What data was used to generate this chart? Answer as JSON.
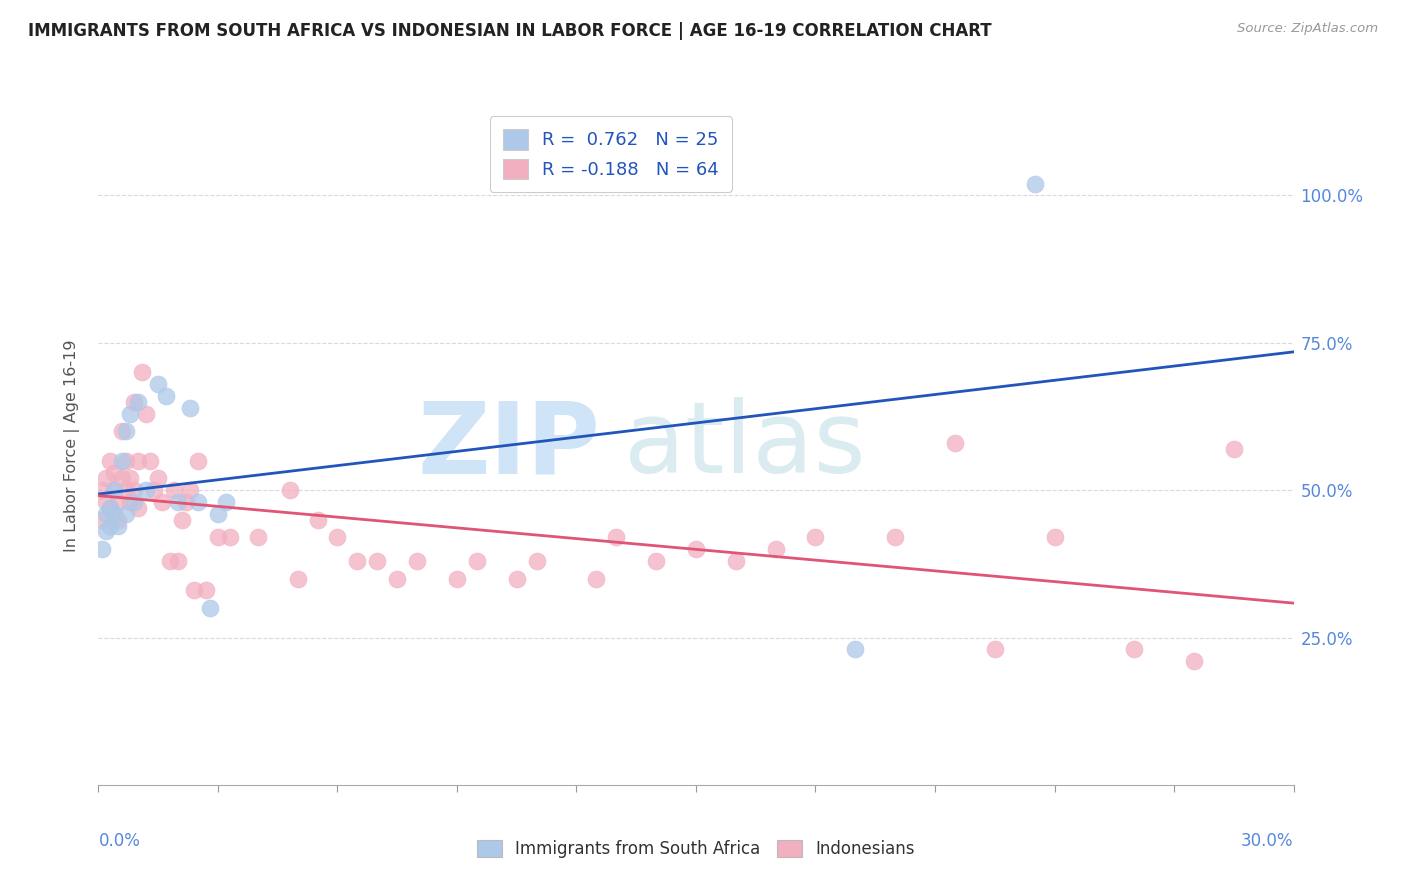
{
  "title": "IMMIGRANTS FROM SOUTH AFRICA VS INDONESIAN IN LABOR FORCE | AGE 16-19 CORRELATION CHART",
  "source": "Source: ZipAtlas.com",
  "ylabel": "In Labor Force | Age 16-19",
  "ylabel_right_ticks": [
    "100.0%",
    "75.0%",
    "50.0%",
    "25.0%"
  ],
  "ylabel_right_values": [
    1.0,
    0.75,
    0.5,
    0.25
  ],
  "r_sa": 0.762,
  "n_sa": 25,
  "r_id": -0.188,
  "n_id": 64,
  "sa_color": "#adc8e8",
  "id_color": "#f2afc0",
  "sa_line_color": "#2255bb",
  "id_line_color": "#e05575",
  "background_color": "#ffffff",
  "grid_color": "#d8d8e8",
  "title_color": "#222222",
  "xlim": [
    0.0,
    0.3
  ],
  "ylim": [
    0.0,
    1.15
  ],
  "sa_x": [
    0.001,
    0.002,
    0.002,
    0.003,
    0.003,
    0.004,
    0.004,
    0.005,
    0.006,
    0.007,
    0.007,
    0.008,
    0.009,
    0.01,
    0.012,
    0.015,
    0.017,
    0.02,
    0.023,
    0.025,
    0.028,
    0.03,
    0.032,
    0.19,
    0.235
  ],
  "sa_y": [
    0.4,
    0.43,
    0.46,
    0.44,
    0.47,
    0.46,
    0.5,
    0.44,
    0.55,
    0.6,
    0.46,
    0.63,
    0.48,
    0.65,
    0.5,
    0.68,
    0.66,
    0.48,
    0.64,
    0.48,
    0.3,
    0.46,
    0.48,
    0.23,
    1.02
  ],
  "id_x": [
    0.001,
    0.001,
    0.002,
    0.002,
    0.003,
    0.003,
    0.004,
    0.004,
    0.005,
    0.005,
    0.006,
    0.006,
    0.007,
    0.007,
    0.008,
    0.008,
    0.009,
    0.009,
    0.01,
    0.01,
    0.011,
    0.012,
    0.013,
    0.014,
    0.015,
    0.016,
    0.018,
    0.019,
    0.02,
    0.021,
    0.022,
    0.023,
    0.024,
    0.025,
    0.027,
    0.03,
    0.033,
    0.04,
    0.048,
    0.055,
    0.06,
    0.07,
    0.08,
    0.095,
    0.11,
    0.125,
    0.14,
    0.16,
    0.18,
    0.2,
    0.215,
    0.225,
    0.24,
    0.26,
    0.275,
    0.285,
    0.05,
    0.065,
    0.075,
    0.09,
    0.105,
    0.13,
    0.15,
    0.17
  ],
  "id_y": [
    0.45,
    0.5,
    0.48,
    0.52,
    0.47,
    0.55,
    0.5,
    0.53,
    0.48,
    0.45,
    0.52,
    0.6,
    0.5,
    0.55,
    0.48,
    0.52,
    0.65,
    0.5,
    0.55,
    0.47,
    0.7,
    0.63,
    0.55,
    0.5,
    0.52,
    0.48,
    0.38,
    0.5,
    0.38,
    0.45,
    0.48,
    0.5,
    0.33,
    0.55,
    0.33,
    0.42,
    0.42,
    0.42,
    0.5,
    0.45,
    0.42,
    0.38,
    0.38,
    0.38,
    0.38,
    0.35,
    0.38,
    0.38,
    0.42,
    0.42,
    0.58,
    0.23,
    0.42,
    0.23,
    0.21,
    0.57,
    0.35,
    0.38,
    0.35,
    0.35,
    0.35,
    0.42,
    0.4,
    0.4
  ]
}
